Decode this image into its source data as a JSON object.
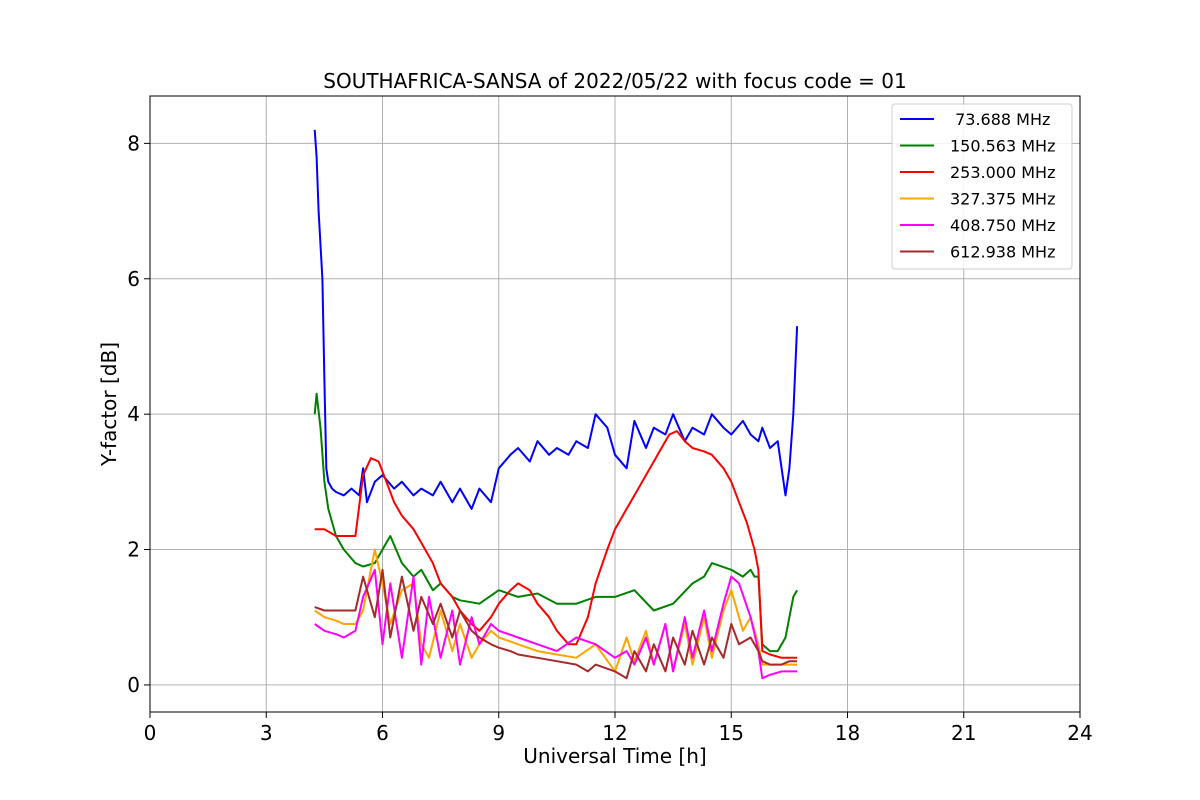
{
  "chart_data": {
    "type": "line",
    "title": "SOUTHAFRICA-SANSA of 2022/05/22 with focus code = 01",
    "xlabel": "Universal Time [h]",
    "ylabel": "Y-factor [dB]",
    "xlim": [
      0,
      24
    ],
    "ylim": [
      -0.4,
      8.7
    ],
    "xticks": [
      0,
      3,
      6,
      9,
      12,
      15,
      18,
      21,
      24
    ],
    "yticks": [
      0,
      2,
      4,
      6,
      8
    ],
    "grid": true,
    "legend": "top-right",
    "series": [
      {
        "name": " 73.688 MHz",
        "color": "#0000ff",
        "x": [
          4.25,
          4.3,
          4.35,
          4.4,
          4.45,
          4.5,
          4.55,
          4.6,
          4.7,
          4.8,
          5.0,
          5.2,
          5.4,
          5.5,
          5.6,
          5.8,
          6.0,
          6.3,
          6.5,
          6.8,
          7.0,
          7.3,
          7.5,
          7.8,
          8.0,
          8.3,
          8.5,
          8.8,
          9.0,
          9.3,
          9.5,
          9.8,
          10.0,
          10.3,
          10.5,
          10.8,
          11.0,
          11.3,
          11.5,
          11.8,
          12.0,
          12.3,
          12.5,
          12.8,
          13.0,
          13.3,
          13.5,
          13.8,
          14.0,
          14.3,
          14.5,
          14.8,
          15.0,
          15.3,
          15.5,
          15.7,
          15.8,
          16.0,
          16.2,
          16.4,
          16.5,
          16.6,
          16.7
        ],
        "values": [
          8.2,
          7.8,
          7.0,
          6.5,
          6.0,
          4.5,
          3.2,
          3.0,
          2.9,
          2.85,
          2.8,
          2.9,
          2.8,
          3.2,
          2.7,
          3.0,
          3.1,
          2.9,
          3.0,
          2.8,
          2.9,
          2.8,
          3.0,
          2.7,
          2.9,
          2.6,
          2.9,
          2.7,
          3.2,
          3.4,
          3.5,
          3.3,
          3.6,
          3.4,
          3.5,
          3.4,
          3.6,
          3.5,
          4.0,
          3.8,
          3.4,
          3.2,
          3.9,
          3.5,
          3.8,
          3.7,
          4.0,
          3.6,
          3.8,
          3.7,
          4.0,
          3.8,
          3.7,
          3.9,
          3.7,
          3.6,
          3.8,
          3.5,
          3.6,
          2.8,
          3.2,
          4.0,
          5.3
        ]
      },
      {
        "name": "150.563 MHz",
        "color": "#008000",
        "x": [
          4.25,
          4.3,
          4.4,
          4.5,
          4.6,
          4.8,
          5.0,
          5.3,
          5.5,
          5.8,
          6.0,
          6.2,
          6.5,
          6.8,
          7.0,
          7.3,
          7.5,
          7.8,
          8.0,
          8.5,
          9.0,
          9.5,
          10.0,
          10.5,
          11.0,
          11.5,
          12.0,
          12.5,
          13.0,
          13.5,
          14.0,
          14.3,
          14.5,
          15.0,
          15.3,
          15.5,
          15.6,
          15.7,
          15.8,
          16.0,
          16.2,
          16.4,
          16.5,
          16.6,
          16.7
        ],
        "values": [
          4.0,
          4.3,
          3.8,
          3.0,
          2.6,
          2.2,
          2.0,
          1.8,
          1.75,
          1.8,
          2.0,
          2.2,
          1.8,
          1.6,
          1.7,
          1.4,
          1.5,
          1.3,
          1.25,
          1.2,
          1.4,
          1.3,
          1.35,
          1.2,
          1.2,
          1.3,
          1.3,
          1.4,
          1.1,
          1.2,
          1.5,
          1.6,
          1.8,
          1.7,
          1.6,
          1.7,
          1.6,
          1.6,
          0.6,
          0.5,
          0.5,
          0.7,
          1.0,
          1.3,
          1.4
        ]
      },
      {
        "name": "253.000 MHz",
        "color": "#ff0000",
        "x": [
          4.25,
          4.5,
          4.8,
          5.0,
          5.3,
          5.5,
          5.7,
          5.9,
          6.1,
          6.3,
          6.5,
          6.8,
          7.0,
          7.3,
          7.5,
          7.8,
          8.0,
          8.3,
          8.5,
          8.8,
          9.0,
          9.3,
          9.5,
          9.8,
          10.0,
          10.3,
          10.5,
          10.8,
          11.0,
          11.3,
          11.5,
          11.8,
          12.0,
          12.3,
          12.5,
          12.8,
          13.0,
          13.2,
          13.4,
          13.6,
          13.8,
          14.0,
          14.3,
          14.5,
          14.8,
          15.0,
          15.2,
          15.4,
          15.6,
          15.7,
          15.8,
          16.0,
          16.3,
          16.5,
          16.7
        ],
        "values": [
          2.3,
          2.3,
          2.2,
          2.2,
          2.2,
          3.1,
          3.35,
          3.3,
          3.0,
          2.7,
          2.5,
          2.3,
          2.1,
          1.8,
          1.5,
          1.3,
          1.1,
          0.9,
          0.8,
          1.0,
          1.2,
          1.4,
          1.5,
          1.4,
          1.2,
          1.0,
          0.8,
          0.6,
          0.6,
          1.0,
          1.5,
          2.0,
          2.3,
          2.6,
          2.8,
          3.1,
          3.3,
          3.5,
          3.7,
          3.75,
          3.6,
          3.5,
          3.45,
          3.4,
          3.2,
          3.0,
          2.7,
          2.4,
          2.0,
          1.7,
          0.5,
          0.45,
          0.4,
          0.4,
          0.4
        ]
      },
      {
        "name": "327.375 MHz",
        "color": "#ffa500",
        "x": [
          4.25,
          4.5,
          4.8,
          5.0,
          5.3,
          5.5,
          5.8,
          6.0,
          6.2,
          6.5,
          6.8,
          7.0,
          7.2,
          7.5,
          7.8,
          8.0,
          8.3,
          8.5,
          8.8,
          9.0,
          9.5,
          10.0,
          10.5,
          11.0,
          11.5,
          12.0,
          12.3,
          12.5,
          12.8,
          13.0,
          13.3,
          13.5,
          13.8,
          14.0,
          14.3,
          14.5,
          14.8,
          15.0,
          15.3,
          15.5,
          15.7,
          15.8,
          16.0,
          16.3,
          16.5,
          16.7
        ],
        "values": [
          1.1,
          1.0,
          0.95,
          0.9,
          0.9,
          1.1,
          2.0,
          1.5,
          0.9,
          1.4,
          1.5,
          0.6,
          0.4,
          1.1,
          0.5,
          0.9,
          0.4,
          0.6,
          0.8,
          0.7,
          0.6,
          0.5,
          0.45,
          0.4,
          0.6,
          0.2,
          0.7,
          0.35,
          0.8,
          0.3,
          0.9,
          0.2,
          0.9,
          0.3,
          1.0,
          0.4,
          1.1,
          1.4,
          0.8,
          1.0,
          0.6,
          0.3,
          0.3,
          0.3,
          0.3,
          0.3
        ]
      },
      {
        "name": "408.750 MHz",
        "color": "#ff00ff",
        "x": [
          4.25,
          4.5,
          4.8,
          5.0,
          5.3,
          5.5,
          5.8,
          6.0,
          6.2,
          6.5,
          6.8,
          7.0,
          7.2,
          7.5,
          7.8,
          8.0,
          8.3,
          8.5,
          8.8,
          9.0,
          9.5,
          10.0,
          10.5,
          11.0,
          11.5,
          12.0,
          12.3,
          12.5,
          12.8,
          13.0,
          13.3,
          13.5,
          13.8,
          14.0,
          14.3,
          14.5,
          14.8,
          15.0,
          15.2,
          15.5,
          15.7,
          15.8,
          16.0,
          16.3,
          16.5,
          16.7
        ],
        "values": [
          0.9,
          0.8,
          0.75,
          0.7,
          0.8,
          1.3,
          1.7,
          0.6,
          1.5,
          0.4,
          1.6,
          0.3,
          1.3,
          0.4,
          1.1,
          0.3,
          1.0,
          0.6,
          0.9,
          0.8,
          0.7,
          0.6,
          0.5,
          0.7,
          0.6,
          0.4,
          0.5,
          0.3,
          0.7,
          0.3,
          0.9,
          0.2,
          1.0,
          0.4,
          1.1,
          0.5,
          1.2,
          1.6,
          1.5,
          1.0,
          0.5,
          0.1,
          0.15,
          0.2,
          0.2,
          0.2
        ]
      },
      {
        "name": "612.938 MHz",
        "color": "#a52a2a",
        "x": [
          4.25,
          4.5,
          4.8,
          5.0,
          5.3,
          5.5,
          5.8,
          6.0,
          6.2,
          6.5,
          6.8,
          7.0,
          7.3,
          7.5,
          7.8,
          8.0,
          8.3,
          8.5,
          8.8,
          9.0,
          9.3,
          9.5,
          10.0,
          10.5,
          11.0,
          11.3,
          11.5,
          12.0,
          12.3,
          12.5,
          12.8,
          13.0,
          13.3,
          13.5,
          13.8,
          14.0,
          14.3,
          14.5,
          14.8,
          15.0,
          15.2,
          15.5,
          15.7,
          15.8,
          16.0,
          16.3,
          16.5,
          16.7
        ],
        "values": [
          1.15,
          1.1,
          1.1,
          1.1,
          1.1,
          1.6,
          1.0,
          1.7,
          0.7,
          1.6,
          0.8,
          1.3,
          0.9,
          1.2,
          0.7,
          1.1,
          0.8,
          0.7,
          0.6,
          0.55,
          0.5,
          0.45,
          0.4,
          0.35,
          0.3,
          0.2,
          0.3,
          0.2,
          0.1,
          0.5,
          0.2,
          0.6,
          0.2,
          0.7,
          0.3,
          0.8,
          0.3,
          0.7,
          0.4,
          0.9,
          0.6,
          0.7,
          0.5,
          0.35,
          0.3,
          0.3,
          0.35,
          0.35
        ]
      }
    ]
  }
}
